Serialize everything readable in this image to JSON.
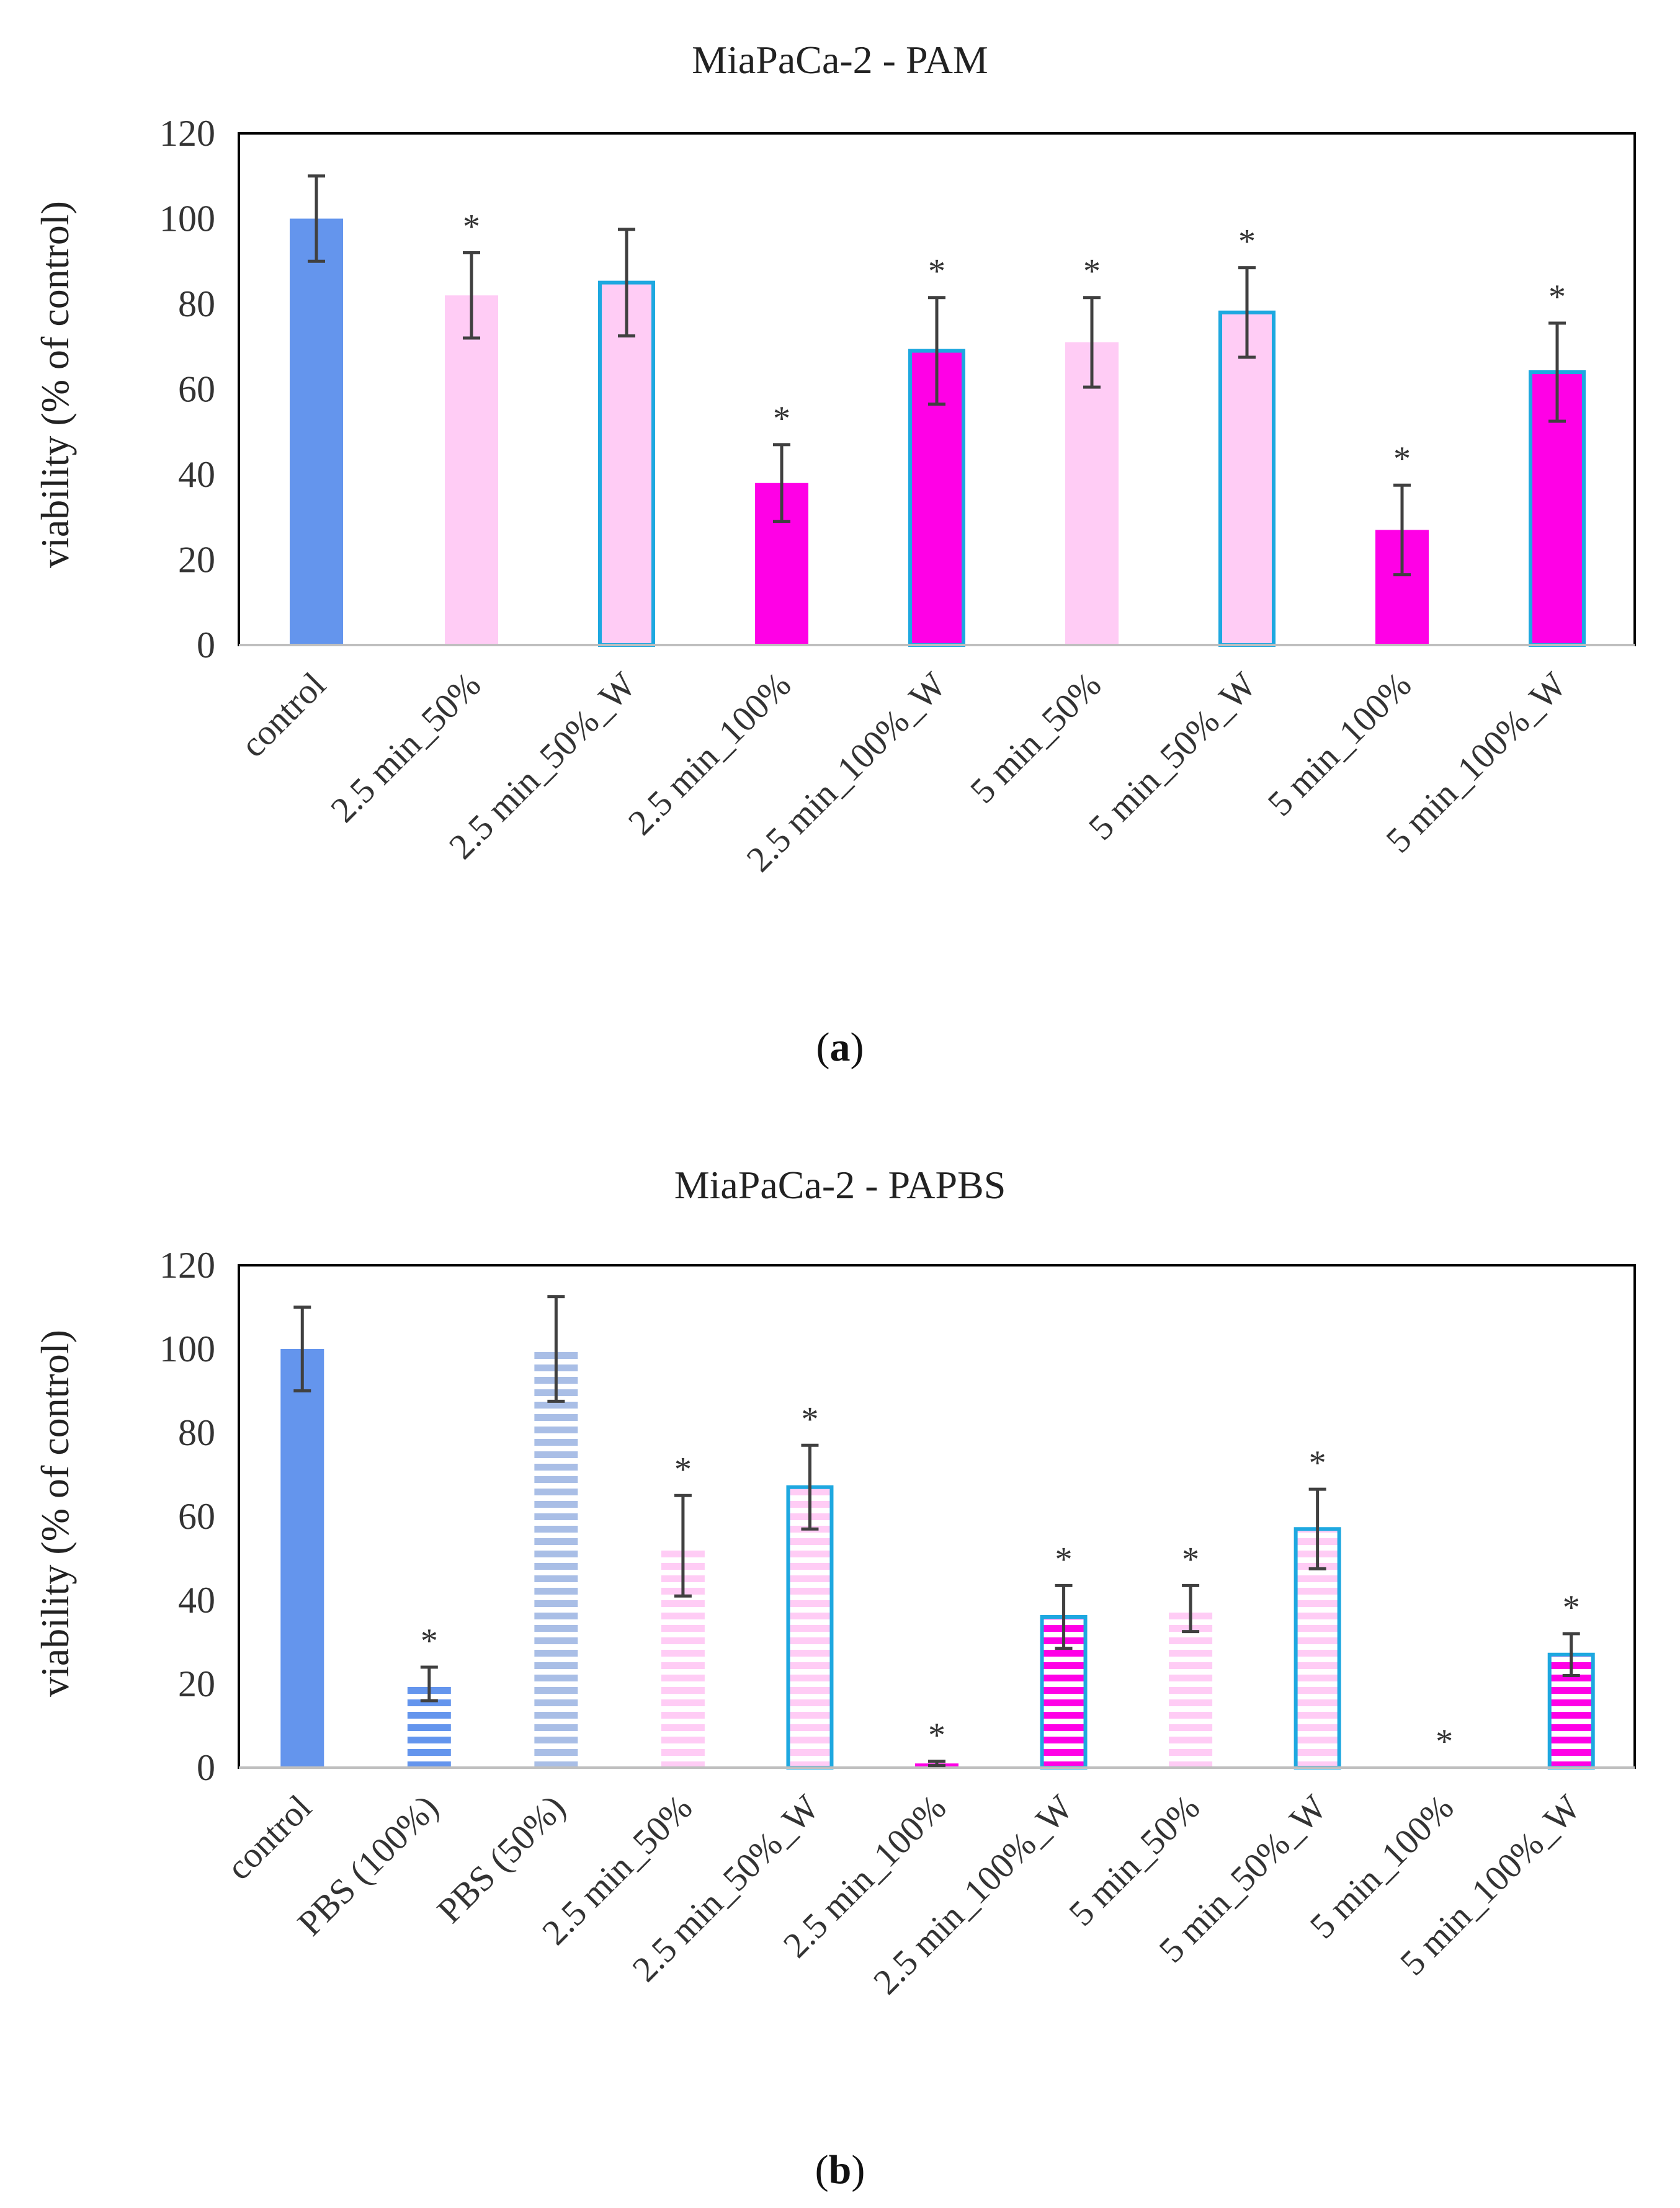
{
  "chart_data": [
    {
      "type": "bar",
      "title": "MiaPaCa-2 - PAM",
      "ylabel": "viability (% of control)",
      "xlabel": "",
      "ylim": [
        0,
        120
      ],
      "yticks": [
        0,
        20,
        40,
        60,
        80,
        100,
        120
      ],
      "caption_letter": "a",
      "categories": [
        "control",
        "2.5 min_50%",
        "2.5 min_50%_W",
        "2.5 min_100%",
        "2.5 min_100%_W",
        "5 min_50%",
        "5 min_50%_W",
        "5 min_100%",
        "5 min_100%_W"
      ],
      "values": [
        100,
        82,
        85,
        38,
        69,
        71,
        78,
        27,
        64
      ],
      "errors": [
        10,
        10,
        12.5,
        9,
        12.5,
        10.5,
        10.5,
        10.5,
        11.5
      ],
      "significant": [
        false,
        true,
        false,
        true,
        true,
        true,
        true,
        true,
        true
      ],
      "significance_mark": "*",
      "bar_styles": [
        {
          "fill": "#6495ED",
          "pattern": "solid",
          "outline": "none"
        },
        {
          "fill": "#FFCCF5",
          "pattern": "solid",
          "outline": "none"
        },
        {
          "fill": "#FFCCF5",
          "pattern": "solid",
          "outline": "#1EA8E0"
        },
        {
          "fill": "#FF00E6",
          "pattern": "solid",
          "outline": "none"
        },
        {
          "fill": "#FF00E6",
          "pattern": "solid",
          "outline": "#1EA8E0"
        },
        {
          "fill": "#FFCCF5",
          "pattern": "solid",
          "outline": "none"
        },
        {
          "fill": "#FFCCF5",
          "pattern": "solid",
          "outline": "#1EA8E0"
        },
        {
          "fill": "#FF00E6",
          "pattern": "solid",
          "outline": "none"
        },
        {
          "fill": "#FF00E6",
          "pattern": "solid",
          "outline": "#1EA8E0"
        }
      ]
    },
    {
      "type": "bar",
      "title": "MiaPaCa-2 - PAPBS",
      "ylabel": "viability (% of control)",
      "xlabel": "",
      "ylim": [
        0,
        120
      ],
      "yticks": [
        0,
        20,
        40,
        60,
        80,
        100,
        120
      ],
      "caption_letter": "b",
      "categories": [
        "control",
        "PBS (100%)",
        "PBS (50%)",
        "2.5 min_50%",
        "2.5 min_50%_W",
        "2.5 min_100%",
        "2.5 min_100%_W",
        "5 min_50%",
        "5 min_50%_W",
        "5 min_100%",
        "5 min_100%_W"
      ],
      "values": [
        100,
        20,
        100,
        53,
        67,
        1,
        36,
        38,
        57,
        0,
        27
      ],
      "errors": [
        10,
        4,
        12.5,
        12,
        10,
        0.5,
        7.5,
        5.5,
        9.5,
        0,
        5
      ],
      "significant": [
        false,
        true,
        false,
        true,
        true,
        true,
        true,
        true,
        true,
        true,
        true
      ],
      "significance_mark": "*",
      "bar_styles": [
        {
          "fill": "#6495ED",
          "pattern": "solid",
          "outline": "none"
        },
        {
          "fill": "#6495ED",
          "pattern": "stripes",
          "outline": "none"
        },
        {
          "fill": "#A9BEE6",
          "pattern": "stripes",
          "outline": "none"
        },
        {
          "fill": "#FFCCF5",
          "pattern": "stripes",
          "outline": "none"
        },
        {
          "fill": "#FFCCF5",
          "pattern": "stripes",
          "outline": "#1EA8E0"
        },
        {
          "fill": "#FF00E6",
          "pattern": "stripes",
          "outline": "none"
        },
        {
          "fill": "#FF00E6",
          "pattern": "stripes",
          "outline": "#1EA8E0"
        },
        {
          "fill": "#FFCCF5",
          "pattern": "stripes",
          "outline": "none"
        },
        {
          "fill": "#FFCCF5",
          "pattern": "stripes",
          "outline": "#1EA8E0"
        },
        {
          "fill": "#FF00E6",
          "pattern": "stripes",
          "outline": "none"
        },
        {
          "fill": "#FF00E6",
          "pattern": "stripes",
          "outline": "#1EA8E0"
        }
      ]
    }
  ],
  "colors": {
    "axis": "#000000",
    "baseline": "#BFBFBF",
    "error_bar": "#404040",
    "text": "#333333"
  }
}
